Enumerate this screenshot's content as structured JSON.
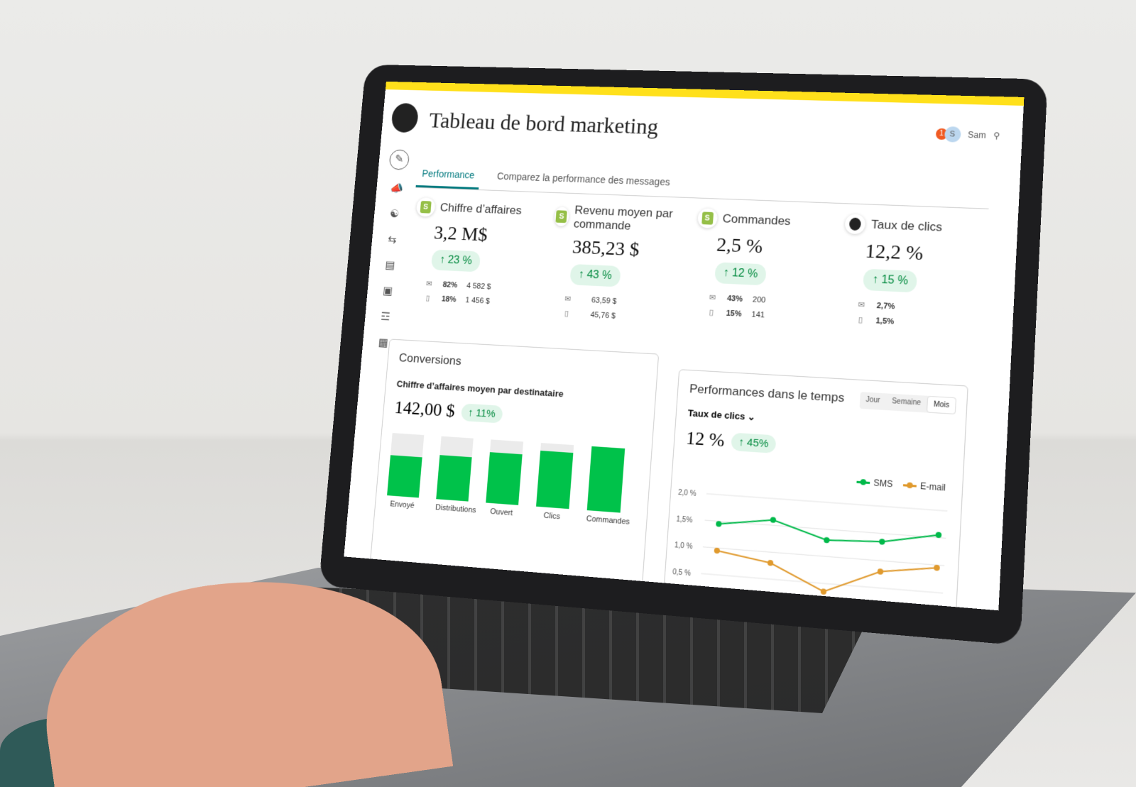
{
  "header": {
    "title": "Tableau de bord marketing",
    "notification_count": "1",
    "avatar_initial": "S",
    "user_name": "Sam",
    "search_icon": "search-icon"
  },
  "tabs": [
    {
      "label": "Performance",
      "active": true
    },
    {
      "label": "Comparez la performance des messages",
      "active": false
    }
  ],
  "sidebar": {
    "icons": [
      "pencil-icon",
      "megaphone-icon",
      "audience-icon",
      "automation-icon",
      "analytics-icon",
      "content-icon",
      "integrations-icon",
      "grid-icon"
    ]
  },
  "kpis": [
    {
      "label": "Chiffre d’affaires",
      "source": "shopify",
      "value": "3,2 M$",
      "change": "23 %",
      "email": {
        "pct": "82%",
        "value": "4 582 $"
      },
      "sms": {
        "pct": "18%",
        "value": "1 456 $"
      }
    },
    {
      "label": "Revenu moyen par commande",
      "source": "shopify",
      "value": "385,23 $",
      "change": "43 %",
      "email": {
        "pct": "",
        "value": "63,59 $"
      },
      "sms": {
        "pct": "",
        "value": "45,76 $"
      }
    },
    {
      "label": "Commandes",
      "source": "shopify",
      "value": "2,5 %",
      "change": "12 %",
      "email": {
        "pct": "43%",
        "value": "200"
      },
      "sms": {
        "pct": "15%",
        "value": "141"
      }
    },
    {
      "label": "Taux de clics",
      "source": "mailchimp",
      "value": "12,2 %",
      "change": "15 %",
      "email": {
        "pct": "2,7%",
        "value": ""
      },
      "sms": {
        "pct": "1,5%",
        "value": ""
      }
    }
  ],
  "conversions": {
    "title": "Conversions",
    "subtitle": "Chiffre d’affaires moyen par destinataire",
    "value": "142,00 $",
    "change": "11%"
  },
  "performance": {
    "title": "Performances dans le temps",
    "periods": [
      "Jour",
      "Semaine",
      "Mois"
    ],
    "selected_period": "Mois",
    "metric": "Taux de clics",
    "value": "12 %",
    "change": "45%"
  },
  "colors": {
    "accent": "#00797e",
    "brand_yellow": "#ffe01b",
    "positive": "#038a3f",
    "bar": "#00c24a",
    "sms": "#00b94a",
    "email": "#e09a2e"
  },
  "chart_data": [
    {
      "type": "bar",
      "categories": [
        "Envoyé",
        "Distributions",
        "Ouvert",
        "Clics",
        "Commandes"
      ],
      "values": [
        0.65,
        0.7,
        0.8,
        0.88,
        1.0
      ],
      "ylim": [
        0,
        1
      ]
    },
    {
      "type": "line",
      "x": [
        1,
        2,
        3,
        4,
        5
      ],
      "yticks": [
        "2,0 %",
        "1,5%",
        "1,0 %",
        "0,5 %"
      ],
      "ylim": [
        0.5,
        2.0
      ],
      "grid": true,
      "legend": "top-right",
      "series": [
        {
          "name": "SMS",
          "values": [
            1.45,
            1.6,
            1.3,
            1.35,
            1.55
          ]
        },
        {
          "name": "E-mail",
          "values": [
            0.95,
            0.8,
            0.35,
            0.8,
            0.95
          ]
        }
      ]
    }
  ]
}
